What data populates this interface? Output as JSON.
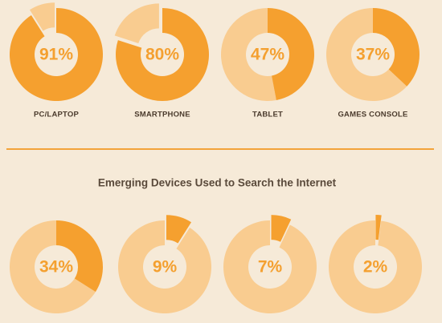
{
  "chart_data": [
    {
      "type": "donut",
      "categories": [
        "PC/LAPTOP",
        "SMARTPHONE",
        "TABLET",
        "GAMES CONSOLE"
      ],
      "values": [
        91,
        80,
        47,
        37
      ],
      "value_labels": [
        "91%",
        "80%",
        "47%",
        "37%"
      ],
      "color": "#f5a02f",
      "remainder_color": "#f9cc90"
    },
    {
      "type": "donut",
      "title": "Emerging Devices Used to Search the Internet",
      "categories": [
        null,
        null,
        null,
        null
      ],
      "values": [
        34,
        9,
        7,
        2
      ],
      "value_labels": [
        "34%",
        "9%",
        "7%",
        "2%"
      ],
      "color": "#f5a02f",
      "remainder_color": "#f9cc90"
    }
  ]
}
